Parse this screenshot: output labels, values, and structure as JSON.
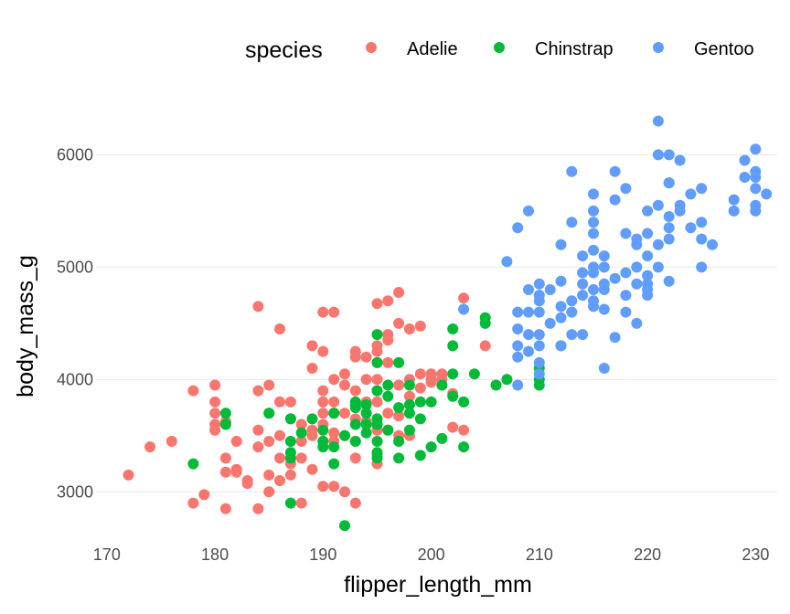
{
  "chart_data": {
    "type": "scatter",
    "xlabel": "flipper_length_mm",
    "ylabel": "body_mass_g",
    "xlim": [
      169,
      232
    ],
    "ylim": [
      2580,
      6320
    ],
    "xticks": [
      170,
      180,
      190,
      200,
      210,
      220,
      230
    ],
    "yticks": [
      3000,
      4000,
      5000,
      6000
    ],
    "grid": true,
    "legend": {
      "title": "species",
      "position": "top"
    },
    "series": [
      {
        "name": "Adelie",
        "color": "#F8766D",
        "points": [
          [
            172,
            3150
          ],
          [
            174,
            3400
          ],
          [
            176,
            3450
          ],
          [
            178,
            3900
          ],
          [
            178,
            2900
          ],
          [
            179,
            2975
          ],
          [
            180,
            3950
          ],
          [
            180,
            3800
          ],
          [
            180,
            3700
          ],
          [
            180,
            3600
          ],
          [
            180,
            3550
          ],
          [
            181,
            3625
          ],
          [
            181,
            3300
          ],
          [
            181,
            3175
          ],
          [
            181,
            2850
          ],
          [
            182,
            3200
          ],
          [
            182,
            3175
          ],
          [
            182,
            3450
          ],
          [
            183,
            3100
          ],
          [
            183,
            3075
          ],
          [
            184,
            3550
          ],
          [
            184,
            3400
          ],
          [
            184,
            2850
          ],
          [
            184,
            3900
          ],
          [
            184,
            4650
          ],
          [
            185,
            3950
          ],
          [
            185,
            3700
          ],
          [
            185,
            3450
          ],
          [
            185,
            3150
          ],
          [
            185,
            3000
          ],
          [
            186,
            3800
          ],
          [
            186,
            3500
          ],
          [
            186,
            3300
          ],
          [
            186,
            3100
          ],
          [
            186,
            4450
          ],
          [
            187,
            3800
          ],
          [
            187,
            3650
          ],
          [
            187,
            3300
          ],
          [
            187,
            3250
          ],
          [
            187,
            3150
          ],
          [
            188,
            3600
          ],
          [
            188,
            3450
          ],
          [
            188,
            3300
          ],
          [
            188,
            2900
          ],
          [
            189,
            3500
          ],
          [
            189,
            3200
          ],
          [
            189,
            4300
          ],
          [
            189,
            4100
          ],
          [
            189,
            3550
          ],
          [
            190,
            3900
          ],
          [
            190,
            3800
          ],
          [
            190,
            3700
          ],
          [
            190,
            3450
          ],
          [
            190,
            3050
          ],
          [
            190,
            4250
          ],
          [
            190,
            4600
          ],
          [
            190,
            3600
          ],
          [
            191,
            4000
          ],
          [
            191,
            3800
          ],
          [
            191,
            3700
          ],
          [
            191,
            3525
          ],
          [
            191,
            3050
          ],
          [
            191,
            4600
          ],
          [
            191,
            3450
          ],
          [
            192,
            4050
          ],
          [
            192,
            3950
          ],
          [
            192,
            3700
          ],
          [
            192,
            3500
          ],
          [
            192,
            3000
          ],
          [
            193,
            4250
          ],
          [
            193,
            4200
          ],
          [
            193,
            3900
          ],
          [
            193,
            3650
          ],
          [
            193,
            3450
          ],
          [
            193,
            3300
          ],
          [
            193,
            2900
          ],
          [
            194,
            4000
          ],
          [
            194,
            4200
          ],
          [
            194,
            3800
          ],
          [
            194,
            3625
          ],
          [
            195,
            4675
          ],
          [
            195,
            4300
          ],
          [
            195,
            4250
          ],
          [
            195,
            4150
          ],
          [
            195,
            3800
          ],
          [
            195,
            3550
          ],
          [
            195,
            3325
          ],
          [
            195,
            3250
          ],
          [
            195,
            4000
          ],
          [
            195,
            3900
          ],
          [
            196,
            4700
          ],
          [
            196,
            4350
          ],
          [
            196,
            4400
          ],
          [
            196,
            3700
          ],
          [
            196,
            3550
          ],
          [
            196,
            4150
          ],
          [
            197,
            3950
          ],
          [
            197,
            4775
          ],
          [
            197,
            4500
          ],
          [
            197,
            3675
          ],
          [
            197,
            3500
          ],
          [
            198,
            4000
          ],
          [
            198,
            4450
          ],
          [
            198,
            3850
          ],
          [
            198,
            3500
          ],
          [
            199,
            4475
          ],
          [
            199,
            3925
          ],
          [
            199,
            4050
          ],
          [
            200,
            4050
          ],
          [
            200,
            4000
          ],
          [
            200,
            3975
          ],
          [
            201,
            4000
          ],
          [
            201,
            4050
          ],
          [
            202,
            3575
          ],
          [
            202,
            3875
          ],
          [
            203,
            3550
          ],
          [
            203,
            4725
          ],
          [
            205,
            4300
          ]
        ]
      },
      {
        "name": "Chinstrap",
        "color": "#00BA38",
        "points": [
          [
            178,
            3250
          ],
          [
            181,
            3700
          ],
          [
            181,
            3600
          ],
          [
            185,
            3700
          ],
          [
            187,
            3650
          ],
          [
            187,
            3450
          ],
          [
            187,
            3350
          ],
          [
            187,
            3300
          ],
          [
            187,
            2900
          ],
          [
            188,
            3525
          ],
          [
            189,
            3650
          ],
          [
            190,
            3550
          ],
          [
            190,
            3400
          ],
          [
            190,
            3450
          ],
          [
            191,
            3250
          ],
          [
            191,
            3400
          ],
          [
            191,
            3700
          ],
          [
            192,
            3500
          ],
          [
            192,
            2700
          ],
          [
            193,
            3800
          ],
          [
            193,
            3775
          ],
          [
            193,
            3600
          ],
          [
            193,
            3450
          ],
          [
            193,
            3750
          ],
          [
            194,
            3775
          ],
          [
            194,
            3700
          ],
          [
            194,
            3525
          ],
          [
            194,
            3600
          ],
          [
            195,
            4400
          ],
          [
            195,
            4150
          ],
          [
            195,
            3900
          ],
          [
            195,
            3650
          ],
          [
            195,
            3600
          ],
          [
            195,
            3450
          ],
          [
            195,
            3350
          ],
          [
            195,
            3300
          ],
          [
            196,
            3850
          ],
          [
            196,
            3950
          ],
          [
            196,
            3550
          ],
          [
            197,
            4150
          ],
          [
            197,
            3750
          ],
          [
            197,
            3450
          ],
          [
            197,
            3300
          ],
          [
            198,
            3700
          ],
          [
            198,
            3775
          ],
          [
            198,
            3550
          ],
          [
            198,
            3950
          ],
          [
            199,
            3800
          ],
          [
            199,
            3650
          ],
          [
            199,
            3325
          ],
          [
            200,
            3400
          ],
          [
            200,
            3800
          ],
          [
            201,
            3950
          ],
          [
            201,
            3475
          ],
          [
            202,
            3850
          ],
          [
            202,
            4450
          ],
          [
            202,
            4300
          ],
          [
            202,
            4050
          ],
          [
            203,
            3800
          ],
          [
            203,
            3400
          ],
          [
            204,
            4050
          ],
          [
            205,
            4550
          ],
          [
            205,
            4500
          ],
          [
            206,
            3950
          ],
          [
            207,
            4000
          ],
          [
            210,
            4100
          ],
          [
            210,
            4000
          ],
          [
            210,
            3950
          ],
          [
            212,
            4300
          ]
        ]
      },
      {
        "name": "Gentoo",
        "color": "#619CFF",
        "points": [
          [
            203,
            4625
          ],
          [
            207,
            5050
          ],
          [
            208,
            3950
          ],
          [
            208,
            4300
          ],
          [
            208,
            4600
          ],
          [
            208,
            5350
          ],
          [
            208,
            4200
          ],
          [
            208,
            4450
          ],
          [
            209,
            5500
          ],
          [
            209,
            4400
          ],
          [
            209,
            4800
          ],
          [
            209,
            4600
          ],
          [
            209,
            4250
          ],
          [
            210,
            4050
          ],
          [
            210,
            4150
          ],
          [
            210,
            4300
          ],
          [
            210,
            4400
          ],
          [
            210,
            4600
          ],
          [
            210,
            4700
          ],
          [
            210,
            4750
          ],
          [
            210,
            4850
          ],
          [
            211,
            4500
          ],
          [
            211,
            4800
          ],
          [
            212,
            5200
          ],
          [
            212,
            4550
          ],
          [
            212,
            4875
          ],
          [
            212,
            4650
          ],
          [
            212,
            4300
          ],
          [
            213,
            5850
          ],
          [
            213,
            5400
          ],
          [
            213,
            4700
          ],
          [
            213,
            4600
          ],
          [
            213,
            4400
          ],
          [
            214,
            5100
          ],
          [
            214,
            4950
          ],
          [
            214,
            4850
          ],
          [
            214,
            4750
          ],
          [
            214,
            4400
          ],
          [
            215,
            5650
          ],
          [
            215,
            5500
          ],
          [
            215,
            5400
          ],
          [
            215,
            5300
          ],
          [
            215,
            5150
          ],
          [
            215,
            5000
          ],
          [
            215,
            4950
          ],
          [
            215,
            4800
          ],
          [
            215,
            4700
          ],
          [
            215,
            4650
          ],
          [
            216,
            5100
          ],
          [
            216,
            5000
          ],
          [
            216,
            4800
          ],
          [
            216,
            4850
          ],
          [
            216,
            4625
          ],
          [
            216,
            4100
          ],
          [
            217,
            4900
          ],
          [
            217,
            5850
          ],
          [
            217,
            5600
          ],
          [
            217,
            4375
          ],
          [
            218,
            5700
          ],
          [
            218,
            5300
          ],
          [
            218,
            4950
          ],
          [
            218,
            4750
          ],
          [
            218,
            4600
          ],
          [
            219,
            5250
          ],
          [
            219,
            5000
          ],
          [
            219,
            4850
          ],
          [
            219,
            4500
          ],
          [
            219,
            5200
          ],
          [
            220,
            5500
          ],
          [
            220,
            5300
          ],
          [
            220,
            5100
          ],
          [
            220,
            4850
          ],
          [
            220,
            4800
          ],
          [
            220,
            4750
          ],
          [
            220,
            4925
          ],
          [
            221,
            6000
          ],
          [
            221,
            6300
          ],
          [
            221,
            5550
          ],
          [
            221,
            5200
          ],
          [
            221,
            5000
          ],
          [
            222,
            6000
          ],
          [
            222,
            5750
          ],
          [
            222,
            5450
          ],
          [
            222,
            5350
          ],
          [
            222,
            5250
          ],
          [
            222,
            4875
          ],
          [
            222,
            5750
          ],
          [
            223,
            5500
          ],
          [
            223,
            5550
          ],
          [
            223,
            5950
          ],
          [
            224,
            5650
          ],
          [
            224,
            5350
          ],
          [
            225,
            5400
          ],
          [
            225,
            5250
          ],
          [
            225,
            5700
          ],
          [
            225,
            5000
          ],
          [
            226,
            5200
          ],
          [
            228,
            5500
          ],
          [
            228,
            5600
          ],
          [
            229,
            5800
          ],
          [
            229,
            5950
          ],
          [
            230,
            6050
          ],
          [
            230,
            5800
          ],
          [
            230,
            5700
          ],
          [
            230,
            5550
          ],
          [
            230,
            5500
          ],
          [
            230,
            5850
          ],
          [
            231,
            5650
          ]
        ]
      }
    ]
  }
}
